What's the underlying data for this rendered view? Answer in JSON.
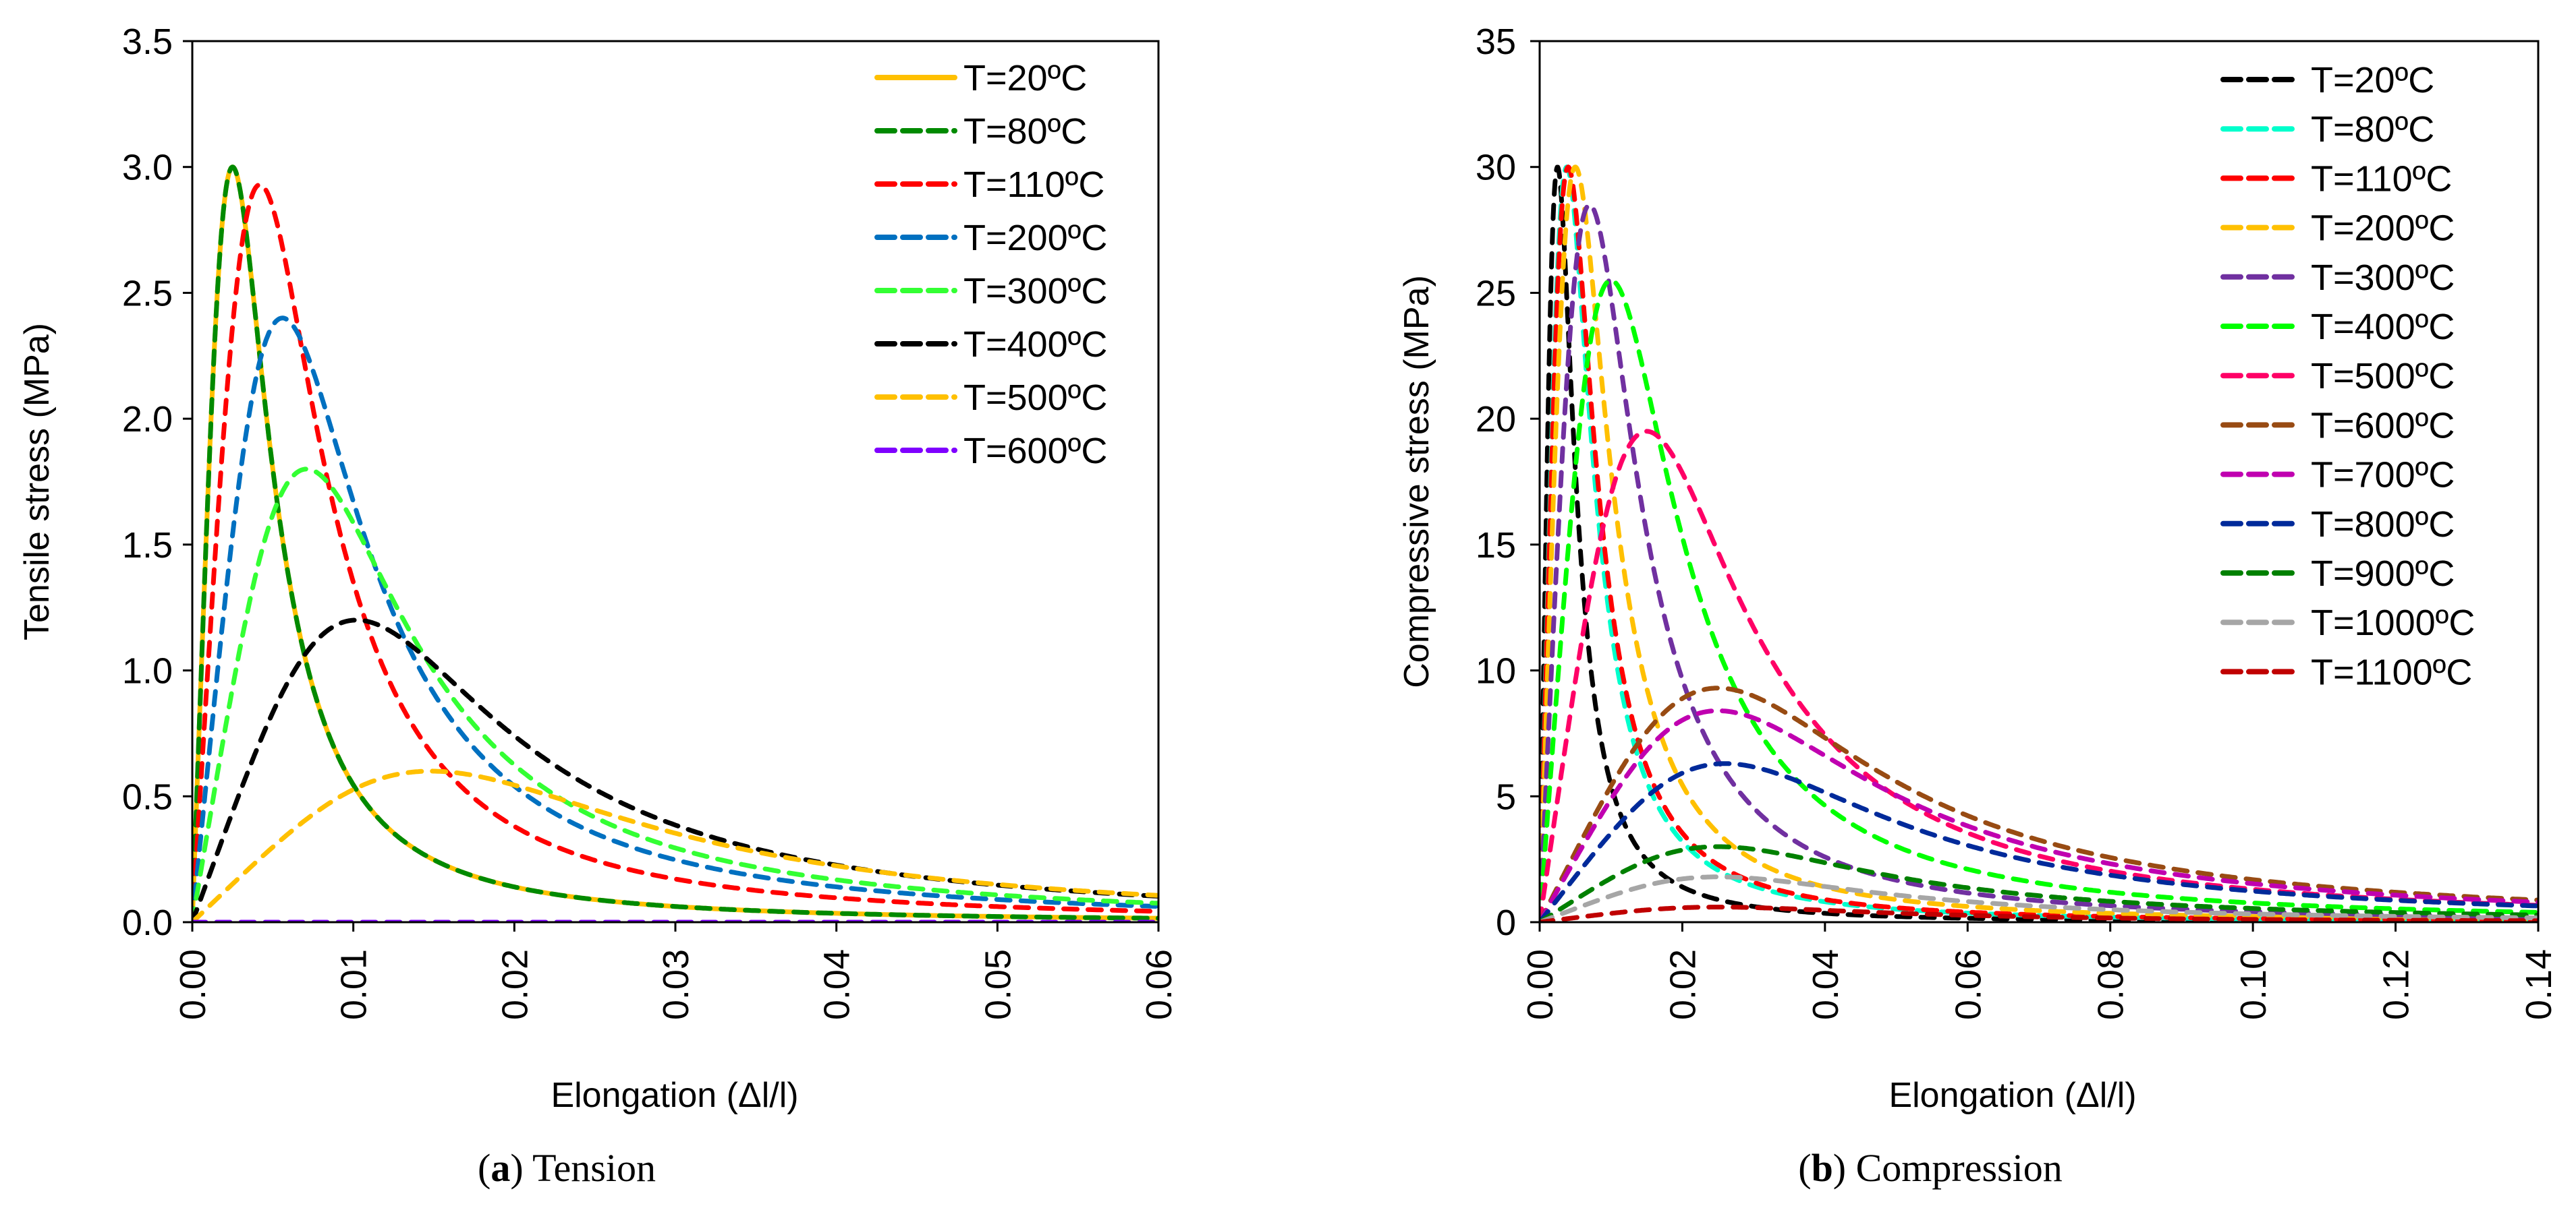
{
  "chart_data": [
    {
      "type": "line",
      "id": "tension",
      "caption_letter": "a",
      "caption_text": " Tension",
      "xlabel": "Elongation (Δl/l)",
      "ylabel": "Tensile stress (MPa)",
      "xlim": [
        0,
        0.06
      ],
      "ylim": [
        0,
        3.5
      ],
      "xticks": [
        "0.00",
        "0.01",
        "0.02",
        "0.03",
        "0.04",
        "0.05",
        "0.06"
      ],
      "xtick_values": [
        0,
        0.01,
        0.02,
        0.03,
        0.04,
        0.05,
        0.06
      ],
      "yticks": [
        "0.0",
        "0.5",
        "1.0",
        "1.5",
        "2.0",
        "2.5",
        "3.0",
        "3.5"
      ],
      "ytick_values": [
        0,
        0.5,
        1,
        1.5,
        2,
        2.5,
        3,
        3.5
      ],
      "legend_position": "top-right",
      "curve_model": "stress = peak_stress * r*n/(n-1+r^n), r = strain/peak_strain, n = 3",
      "series": [
        {
          "name": "T=20ºC",
          "color": "#ffc000",
          "style": "solid",
          "peak_strain": 0.0025,
          "peak_stress": 3.0
        },
        {
          "name": "T=80ºC",
          "color": "#008a00",
          "style": "dashed",
          "peak_strain": 0.0025,
          "peak_stress": 3.0
        },
        {
          "name": "T=110ºC",
          "color": "#ff0000",
          "style": "dashed",
          "peak_strain": 0.0042,
          "peak_stress": 2.93
        },
        {
          "name": "T=200ºC",
          "color": "#0070c0",
          "style": "dashed",
          "peak_strain": 0.0056,
          "peak_stress": 2.4
        },
        {
          "name": "T=300ºC",
          "color": "#33ff33",
          "style": "dashed",
          "peak_strain": 0.0071,
          "peak_stress": 1.8
        },
        {
          "name": "T=400ºC",
          "color": "#000000",
          "style": "dashed",
          "peak_strain": 0.0102,
          "peak_stress": 1.2
        },
        {
          "name": "T=500ºC",
          "color": "#ffc000",
          "style": "dashed",
          "peak_strain": 0.0148,
          "peak_stress": 0.6
        },
        {
          "name": "T=600ºC",
          "color": "#7f00ff",
          "style": "dashed",
          "peak_strain": 0.01,
          "peak_stress": 0.0
        }
      ]
    },
    {
      "type": "line",
      "id": "compression",
      "caption_letter": "b",
      "caption_text": " Compression",
      "xlabel": "Elongation (Δl/l)",
      "ylabel": "Compressive stress (MPa)",
      "xlim": [
        0,
        0.14
      ],
      "ylim": [
        0,
        35
      ],
      "xticks": [
        "0.00",
        "0.02",
        "0.04",
        "0.06",
        "0.08",
        "0.10",
        "0.12",
        "0.14"
      ],
      "xtick_values": [
        0,
        0.02,
        0.04,
        0.06,
        0.08,
        0.1,
        0.12,
        0.14
      ],
      "yticks": [
        "0",
        "5",
        "10",
        "15",
        "20",
        "25",
        "30",
        "35"
      ],
      "ytick_values": [
        0,
        5,
        10,
        15,
        20,
        25,
        30,
        35
      ],
      "legend_position": "top-right",
      "curve_model": "stress = peak_stress * r*n/(n-1+r^n), r = strain/peak_strain, n = 3",
      "series": [
        {
          "name": "T=20ºC",
          "color": "#000000",
          "style": "dashed",
          "peak_strain": 0.0025,
          "peak_stress": 30
        },
        {
          "name": "T=80ºC",
          "color": "#00ffcc",
          "style": "dashed",
          "peak_strain": 0.0038,
          "peak_stress": 30
        },
        {
          "name": "T=110ºC",
          "color": "#ff0000",
          "style": "dashed",
          "peak_strain": 0.004,
          "peak_stress": 30
        },
        {
          "name": "T=200ºC",
          "color": "#ffc000",
          "style": "dashed",
          "peak_strain": 0.005,
          "peak_stress": 30
        },
        {
          "name": "T=300ºC",
          "color": "#7030a0",
          "style": "dashed",
          "peak_strain": 0.007,
          "peak_stress": 28.5
        },
        {
          "name": "T=400ºC",
          "color": "#00ff00",
          "style": "dashed",
          "peak_strain": 0.01,
          "peak_stress": 25.5
        },
        {
          "name": "T=500ºC",
          "color": "#ff0066",
          "style": "dashed",
          "peak_strain": 0.015,
          "peak_stress": 19.5
        },
        {
          "name": "T=600ºC",
          "color": "#984b13",
          "style": "dashed",
          "peak_strain": 0.025,
          "peak_stress": 9.3
        },
        {
          "name": "T=700ºC",
          "color": "#c000b0",
          "style": "dashed",
          "peak_strain": 0.025,
          "peak_stress": 8.4
        },
        {
          "name": "T=800ºC",
          "color": "#002a9a",
          "style": "dashed",
          "peak_strain": 0.026,
          "peak_stress": 6.3
        },
        {
          "name": "T=900ºC",
          "color": "#008000",
          "style": "dashed",
          "peak_strain": 0.025,
          "peak_stress": 3.0
        },
        {
          "name": "T=1000ºC",
          "color": "#a6a6a6",
          "style": "dashed",
          "peak_strain": 0.025,
          "peak_stress": 1.8
        },
        {
          "name": "T=1100ºC",
          "color": "#c00000",
          "style": "dashed",
          "peak_strain": 0.025,
          "peak_stress": 0.6
        }
      ]
    }
  ]
}
